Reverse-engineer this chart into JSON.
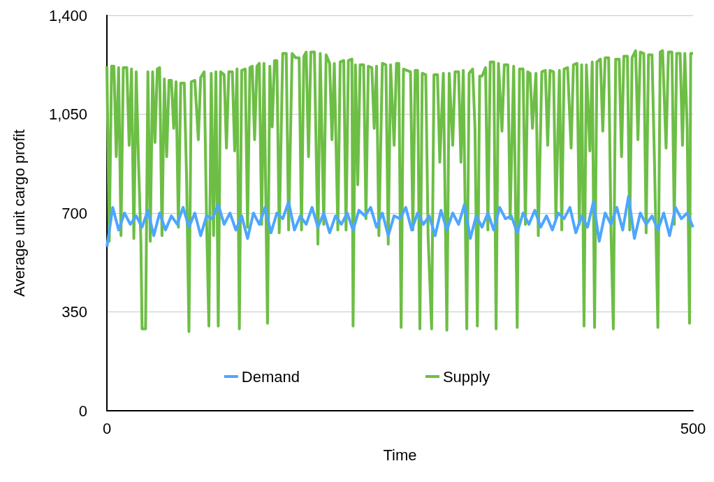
{
  "chart_data": {
    "type": "line",
    "xlabel": "Time",
    "ylabel": "Average unit cargo profit",
    "xlim": [
      0,
      500
    ],
    "xticks": [
      0,
      500
    ],
    "ylim": [
      0,
      1400
    ],
    "yticks": [
      0,
      {
        "value": 350,
        "label": "350"
      },
      {
        "value": 700,
        "label": "700"
      },
      {
        "value": 1050,
        "label": "1,050"
      },
      {
        "value": 1400,
        "label": "1,400"
      }
    ],
    "grid": "y",
    "legend": "bottom",
    "marker": "none",
    "line_style": "solid",
    "series": [
      {
        "name": "Demand",
        "color": "#4da6ff",
        "x": [
          0,
          5,
          10,
          15,
          20,
          25,
          30,
          35,
          40,
          45,
          50,
          55,
          60,
          65,
          70,
          75,
          80,
          85,
          90,
          95,
          100,
          105,
          110,
          115,
          120,
          125,
          130,
          135,
          140,
          145,
          150,
          155,
          160,
          165,
          170,
          175,
          180,
          185,
          190,
          195,
          200,
          205,
          210,
          215,
          220,
          225,
          230,
          235,
          240,
          245,
          250,
          255,
          260,
          265,
          270,
          275,
          280,
          285,
          290,
          295,
          300,
          305,
          310,
          315,
          320,
          325,
          330,
          335,
          340,
          345,
          350,
          355,
          360,
          365,
          370,
          375,
          380,
          385,
          390,
          395,
          400,
          405,
          410,
          415,
          420,
          425,
          430,
          435,
          440,
          445,
          450,
          455,
          460,
          465,
          470,
          475,
          480,
          485,
          490,
          495,
          500
        ],
        "values": [
          580,
          720,
          640,
          700,
          660,
          690,
          650,
          710,
          620,
          700,
          640,
          690,
          660,
          720,
          650,
          700,
          620,
          690,
          680,
          730,
          660,
          700,
          640,
          690,
          610,
          700,
          660,
          720,
          630,
          700,
          680,
          740,
          640,
          690,
          660,
          720,
          650,
          700,
          630,
          690,
          660,
          700,
          640,
          710,
          690,
          720,
          650,
          700,
          620,
          690,
          680,
          720,
          640,
          700,
          660,
          690,
          620,
          710,
          640,
          700,
          660,
          730,
          610,
          690,
          650,
          700,
          640,
          720,
          680,
          690,
          630,
          700,
          660,
          710,
          650,
          690,
          640,
          700,
          680,
          720,
          630,
          690,
          650,
          740,
          600,
          700,
          660,
          720,
          640,
          760,
          610,
          700,
          660,
          690,
          640,
          700,
          620,
          720,
          680,
          700,
          650
        ]
      },
      {
        "name": "Supply",
        "color": "#6dbe45",
        "x": [
          0,
          2,
          4,
          6,
          8,
          10,
          12,
          14,
          17,
          19,
          21,
          23,
          25,
          27,
          29,
          30,
          33,
          35,
          37,
          39,
          41,
          43,
          45,
          47,
          49,
          51,
          53,
          55,
          57,
          59,
          61,
          63,
          66,
          68,
          70,
          72,
          75,
          78,
          80,
          83,
          85,
          87,
          89,
          91,
          93,
          95,
          97,
          100,
          102,
          104,
          107,
          109,
          111,
          113,
          115,
          118,
          120,
          122,
          124,
          126,
          128,
          130,
          132,
          134,
          137,
          139,
          141,
          143,
          145,
          147,
          150,
          153,
          155,
          158,
          161,
          164,
          166,
          168,
          170,
          172,
          174,
          177,
          180,
          182,
          185,
          187,
          190,
          192,
          194,
          197,
          199,
          202,
          204,
          206,
          209,
          210,
          212,
          214,
          216,
          219,
          221,
          223,
          226,
          228,
          230,
          232,
          235,
          238,
          240,
          242,
          245,
          247,
          249,
          251,
          253,
          256,
          259,
          261,
          263,
          265,
          267,
          269,
          272,
          274,
          277,
          279,
          282,
          284,
          287,
          290,
          292,
          295,
          297,
          300,
          302,
          304,
          307,
          309,
          312,
          314,
          316,
          318,
          320,
          323,
          325,
          327,
          330,
          332,
          334,
          337,
          339,
          342,
          344,
          347,
          350,
          352,
          355,
          357,
          359,
          361,
          363,
          366,
          368,
          371,
          374,
          376,
          378,
          381,
          383,
          386,
          388,
          390,
          393,
          396,
          398,
          401,
          403,
          405,
          407,
          409,
          412,
          414,
          416,
          418,
          421,
          423,
          425,
          428,
          430,
          432,
          434,
          437,
          439,
          441,
          444,
          446,
          448,
          451,
          453,
          455,
          458,
          460,
          462,
          465,
          467,
          470,
          472,
          474,
          477,
          479,
          482,
          484,
          486,
          489,
          491,
          493,
          495,
          497,
          498,
          500
        ],
        "values": [
          1220,
          600,
          1220,
          1220,
          900,
          1215,
          620,
          1215,
          1215,
          940,
          1210,
          610,
          1200,
          880,
          600,
          290,
          290,
          1200,
          600,
          1200,
          950,
          1210,
          1215,
          620,
          1175,
          900,
          1170,
          1170,
          1000,
          1165,
          650,
          1160,
          1160,
          820,
          280,
          1165,
          1170,
          960,
          1180,
          1200,
          680,
          300,
          1195,
          620,
          1200,
          300,
          1200,
          1190,
          930,
          1200,
          1200,
          920,
          1210,
          290,
          1205,
          1210,
          650,
          1215,
          1220,
          960,
          1220,
          1230,
          660,
          1230,
          310,
          1220,
          1005,
          1240,
          1240,
          630,
          1265,
          1265,
          640,
          1265,
          1250,
          1250,
          640,
          1255,
          1270,
          900,
          1270,
          1270,
          590,
          1265,
          660,
          1260,
          1230,
          960,
          1230,
          640,
          1235,
          1240,
          640,
          1240,
          1245,
          300,
          1225,
          800,
          1225,
          1225,
          680,
          1220,
          1215,
          1000,
          1220,
          620,
          1230,
          1225,
          590,
          1225,
          940,
          1230,
          1230,
          295,
          1210,
          1205,
          1200,
          640,
          1205,
          1205,
          290,
          1195,
          1190,
          620,
          290,
          1190,
          1190,
          880,
          1195,
          285,
          1195,
          940,
          1200,
          1200,
          880,
          1205,
          290,
          1195,
          1210,
          1000,
          300,
          1185,
          1185,
          1215,
          640,
          1235,
          1235,
          290,
          1230,
          990,
          1225,
          1225,
          680,
          1220,
          295,
          1210,
          1210,
          660,
          1200,
          1195,
          1000,
          1195,
          620,
          1200,
          1205,
          940,
          1205,
          1200,
          680,
          1205,
          640,
          1210,
          1215,
          930,
          1225,
          1230,
          660,
          1225,
          300,
          1225,
          920,
          1235,
          295,
          1235,
          1245,
          990,
          1250,
          1250,
          640,
          290,
          1245,
          1245,
          900,
          1255,
          1255,
          640,
          1250,
          1275,
          960,
          1270,
          1265,
          630,
          1260,
          1260,
          900,
          295,
          1270,
          1275,
          930,
          1270,
          1270,
          660,
          1265,
          1265,
          940,
          1265,
          1000,
          310,
          1265,
          1265
        ]
      }
    ]
  }
}
